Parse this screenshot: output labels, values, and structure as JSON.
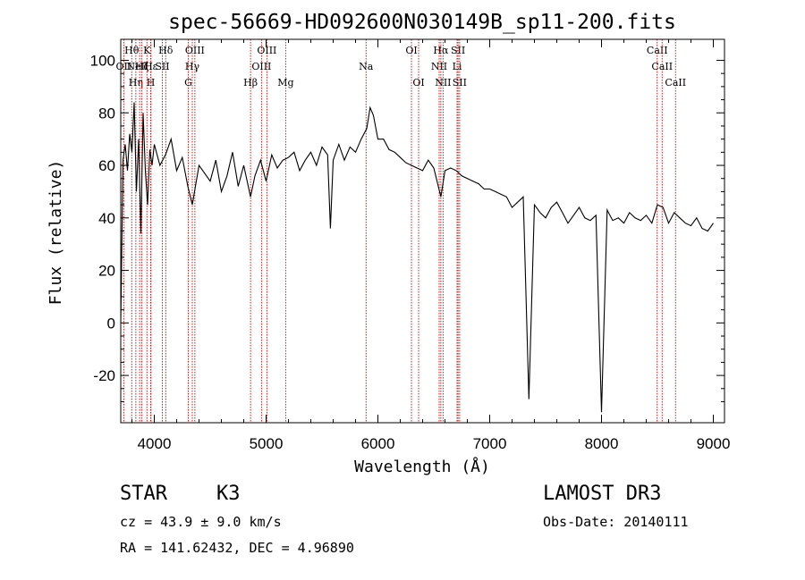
{
  "chart_data": {
    "type": "line",
    "title": "spec-56669-HD092600N030149B_sp11-200.fits",
    "xlabel": "Wavelength (Å)",
    "ylabel": "Flux (relative)",
    "xlim": [
      3700,
      9100
    ],
    "ylim": [
      -38,
      108
    ],
    "xticks": [
      4000,
      5000,
      6000,
      7000,
      8000,
      9000
    ],
    "yticks": [
      -20,
      0,
      20,
      40,
      60,
      80,
      100
    ],
    "series": [
      {
        "name": "flux",
        "x": [
          3700,
          3720,
          3740,
          3760,
          3780,
          3800,
          3820,
          3840,
          3860,
          3880,
          3900,
          3920,
          3940,
          3960,
          3980,
          4000,
          4050,
          4100,
          4150,
          4200,
          4250,
          4300,
          4340,
          4400,
          4450,
          4500,
          4550,
          4600,
          4650,
          4700,
          4750,
          4800,
          4861,
          4900,
          4950,
          5000,
          5050,
          5100,
          5150,
          5200,
          5250,
          5300,
          5350,
          5400,
          5450,
          5500,
          5550,
          5575,
          5600,
          5650,
          5700,
          5750,
          5800,
          5850,
          5900,
          5930,
          5960,
          6000,
          6050,
          6100,
          6150,
          6200,
          6250,
          6300,
          6350,
          6400,
          6450,
          6500,
          6563,
          6600,
          6650,
          6700,
          6750,
          6800,
          6850,
          6900,
          6950,
          7000,
          7050,
          7100,
          7150,
          7200,
          7250,
          7300,
          7350,
          7400,
          7450,
          7500,
          7550,
          7600,
          7650,
          7700,
          7750,
          7800,
          7850,
          7900,
          7950,
          8000,
          8050,
          8100,
          8150,
          8200,
          8250,
          8300,
          8350,
          8400,
          8450,
          8500,
          8550,
          8600,
          8650,
          8700,
          8750,
          8800,
          8850,
          8900,
          8950,
          9000
        ],
        "y": [
          0,
          62,
          68,
          58,
          72,
          65,
          84,
          50,
          70,
          34,
          80,
          58,
          45,
          66,
          60,
          68,
          60,
          64,
          70,
          58,
          63,
          52,
          45,
          60,
          57,
          54,
          62,
          50,
          56,
          65,
          52,
          60,
          48,
          56,
          62,
          54,
          64,
          59,
          62,
          63,
          65,
          58,
          62,
          65,
          60,
          67,
          64,
          36,
          62,
          68,
          62,
          67,
          65,
          70,
          74,
          82,
          79,
          70,
          70,
          66,
          65,
          63,
          61,
          60,
          59,
          58,
          62,
          59,
          48,
          58,
          59,
          58,
          56,
          55,
          54,
          53,
          51,
          51,
          50,
          49,
          48,
          44,
          46,
          48,
          -29,
          45,
          42,
          40,
          44,
          46,
          42,
          38,
          41,
          44,
          40,
          39,
          41,
          -34,
          43,
          39,
          40,
          38,
          42,
          40,
          39,
          41,
          38,
          45,
          44,
          38,
          42,
          40,
          38,
          37,
          40,
          36,
          35,
          38
        ]
      }
    ],
    "lines": [
      {
        "wl": 3727,
        "label": "OII",
        "row": 1
      },
      {
        "wl": 3798,
        "label": "Hθ",
        "row": 0
      },
      {
        "wl": 3835,
        "label": "Hη",
        "row": 2
      },
      {
        "wl": 3869,
        "label": "NeIII",
        "row": 1
      },
      {
        "wl": 3889,
        "label": "Hζ",
        "row": 1
      },
      {
        "wl": 3934,
        "label": "K",
        "row": 0
      },
      {
        "wl": 3968,
        "label": "H",
        "row": 2
      },
      {
        "wl": 3970,
        "label": "Hε",
        "row": 1
      },
      {
        "wl": 4072,
        "label": "SII",
        "row": 1
      },
      {
        "wl": 4102,
        "label": "Hδ",
        "row": 0
      },
      {
        "wl": 4304,
        "label": "G",
        "row": 2
      },
      {
        "wl": 4340,
        "label": "Hγ",
        "row": 1
      },
      {
        "wl": 4363,
        "label": "OIII",
        "row": 0
      },
      {
        "wl": 4861,
        "label": "Hβ",
        "row": 2
      },
      {
        "wl": 4959,
        "label": "OIII",
        "row": 1
      },
      {
        "wl": 5007,
        "label": "OIII",
        "row": 0
      },
      {
        "wl": 5175,
        "label": "Mg",
        "row": 2
      },
      {
        "wl": 5894,
        "label": "Na",
        "row": 1
      },
      {
        "wl": 6300,
        "label": "OI",
        "row": 0
      },
      {
        "wl": 6364,
        "label": "OI",
        "row": 2
      },
      {
        "wl": 6548,
        "label": "NII",
        "row": 1
      },
      {
        "wl": 6563,
        "label": "Hα",
        "row": 0
      },
      {
        "wl": 6583,
        "label": "NII",
        "row": 2
      },
      {
        "wl": 6708,
        "label": "Li",
        "row": 1
      },
      {
        "wl": 6717,
        "label": "SII",
        "row": 0
      },
      {
        "wl": 6731,
        "label": "SII",
        "row": 2
      },
      {
        "wl": 8498,
        "label": "CaII",
        "row": 0
      },
      {
        "wl": 8542,
        "label": "CaII",
        "row": 1
      },
      {
        "wl": 8662,
        "label": "CaII",
        "row": 2
      }
    ]
  },
  "info": {
    "class_label": "STAR",
    "subclass": "K3",
    "survey": "LAMOST DR3",
    "redshift": "cz = 43.9 ± 9.0 km/s",
    "obs_date": "Obs-Date: 20140111",
    "coords": "RA = 141.62432, DEC =    4.96890"
  },
  "colors": {
    "axis": "#000000",
    "spectrum": "#000000",
    "line_marker": "#cc0000"
  }
}
